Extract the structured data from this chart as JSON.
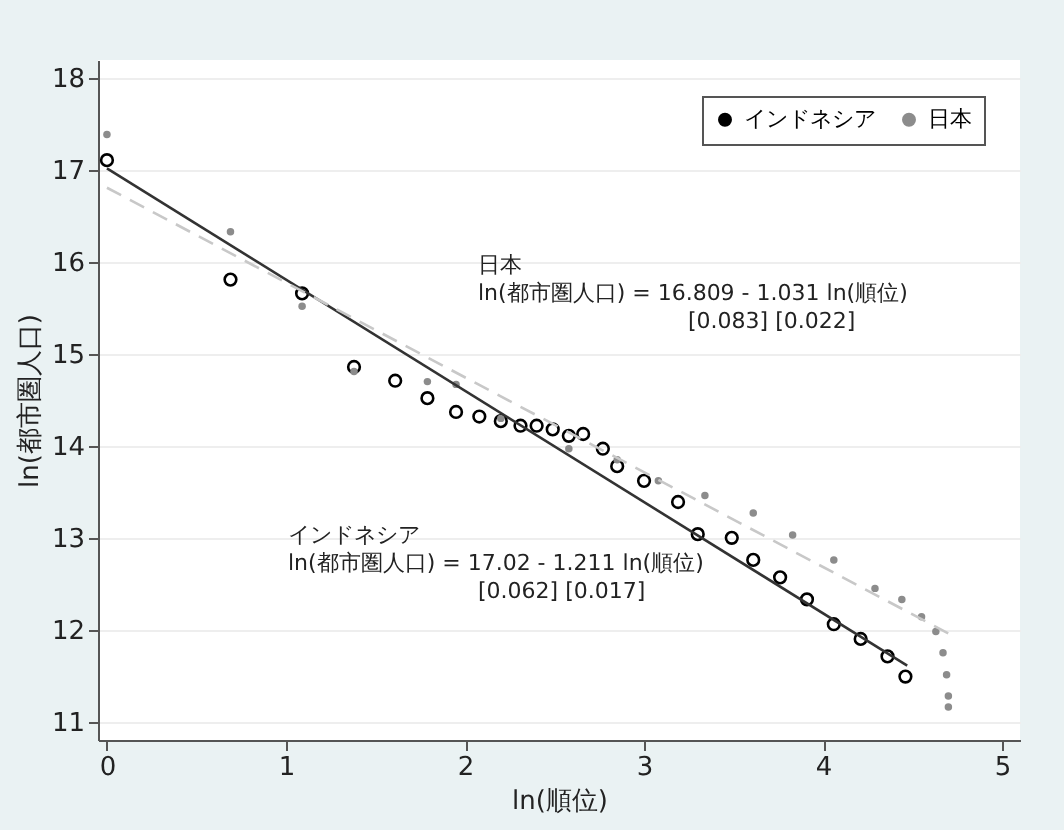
{
  "chart_data": {
    "type": "scatter",
    "xlabel": "ln(順位)",
    "ylabel": "ln(都市圏人口)",
    "xlim": [
      -0.05,
      5.1
    ],
    "ylim": [
      10.8,
      18.2
    ],
    "xticks": [
      0,
      1,
      2,
      3,
      4,
      5
    ],
    "yticks": [
      11,
      12,
      13,
      14,
      15,
      16,
      17,
      18
    ],
    "grid": "y",
    "legend": "top right",
    "series": [
      {
        "name": "インドネシア",
        "color": "#000000",
        "marker": "circle",
        "x": [
          0,
          0.69,
          1.09,
          1.38,
          1.61,
          1.79,
          1.95,
          2.08,
          2.2,
          2.31,
          2.4,
          2.49,
          2.58,
          2.66,
          2.77,
          2.85,
          3.0,
          3.19,
          3.3,
          3.49,
          3.61,
          3.76,
          3.91,
          4.06,
          4.21,
          4.36,
          4.46
        ],
        "values": [
          17.11,
          15.81,
          15.66,
          14.86,
          14.71,
          14.52,
          14.37,
          14.32,
          14.27,
          14.22,
          14.22,
          14.18,
          14.11,
          14.13,
          13.97,
          13.78,
          13.62,
          13.39,
          13.04,
          13.0,
          12.76,
          12.57,
          12.33,
          12.06,
          11.9,
          11.71,
          11.49
        ]
      },
      {
        "name": "日本",
        "color": "#8c8c8c",
        "marker": "circle",
        "x": [
          0,
          0.69,
          1.09,
          1.38,
          1.79,
          1.95,
          2.2,
          2.58,
          2.85,
          3.08,
          3.34,
          3.61,
          3.83,
          4.06,
          4.29,
          4.44,
          4.55,
          4.63,
          4.67,
          4.69,
          4.7,
          4.7
        ],
        "values": [
          17.39,
          16.33,
          15.52,
          14.81,
          14.7,
          14.67,
          14.3,
          13.97,
          13.85,
          13.62,
          13.46,
          13.27,
          13.03,
          12.76,
          12.45,
          12.33,
          12.14,
          11.98,
          11.75,
          11.51,
          11.28,
          11.16
        ]
      },
      {
        "type": "line",
        "color": "#333333",
        "line_style": "solid",
        "x": [
          0,
          4.47
        ],
        "values": [
          17.02,
          11.61
        ]
      },
      {
        "type": "line",
        "color": "#c8c8c8",
        "line_style": "dashed",
        "x": [
          0,
          4.7
        ],
        "values": [
          16.81,
          11.96
        ]
      }
    ],
    "annotations": [
      "日本",
      "ln(都市圏人口) = 16.809 -  1.031 ln(順位)",
      "[0.083]   [0.022]",
      "インドネシア",
      "ln(都市圏人口) = 17.02 -  1.211 ln(順位)",
      "[0.062]  [0.017]"
    ]
  }
}
